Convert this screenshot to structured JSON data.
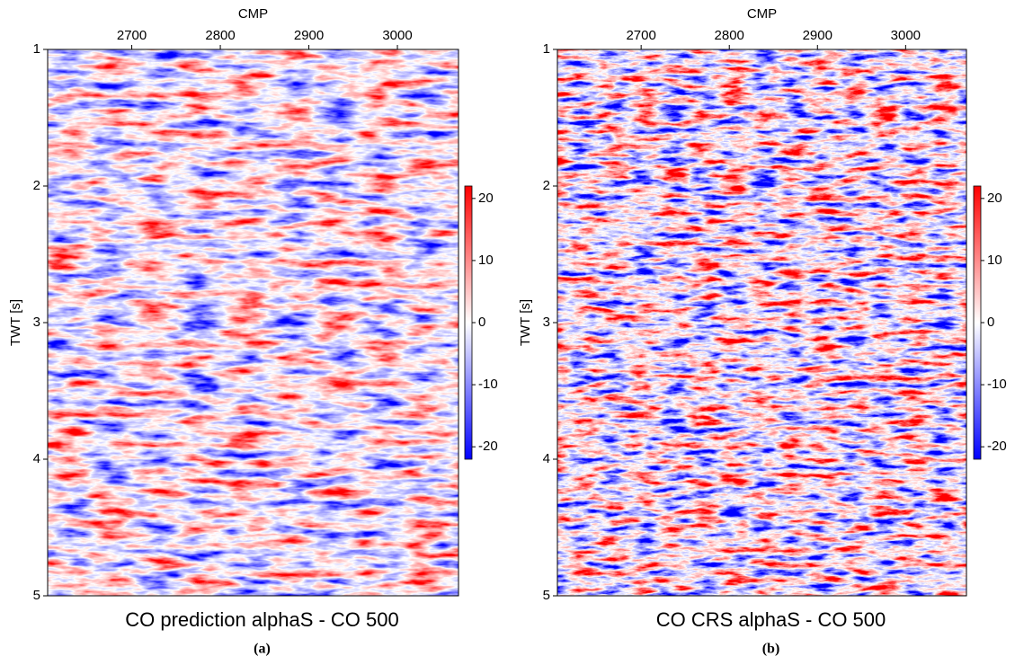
{
  "chart_data": [
    {
      "type": "heatmap",
      "title": "CO prediction alphaS - CO 500",
      "caption": "(a)",
      "xlabel": "CMP",
      "ylabel": "TWT [s]",
      "xlim": [
        2605,
        3069
      ],
      "xticks": [
        2700,
        2800,
        2900,
        3000
      ],
      "ylim": [
        1,
        5
      ],
      "yticks": [
        1,
        2,
        3,
        4,
        5
      ],
      "colorbar": {
        "lim": [
          -22,
          22
        ],
        "ticks": [
          20,
          10,
          0,
          -10,
          -20
        ],
        "colors": [
          "#0000ff",
          "#ffffff",
          "#ff0000"
        ]
      }
    },
    {
      "type": "heatmap",
      "title": "CO CRS alphaS - CO 500",
      "caption": "(b)",
      "xlabel": "CMP",
      "ylabel": "TWT [s]",
      "xlim": [
        2605,
        3069
      ],
      "xticks": [
        2700,
        2800,
        2900,
        3000
      ],
      "ylim": [
        1,
        5
      ],
      "yticks": [
        1,
        2,
        3,
        4,
        5
      ],
      "colorbar": {
        "lim": [
          -22,
          22
        ],
        "ticks": [
          20,
          10,
          0,
          -10,
          -20
        ],
        "colors": [
          "#0000ff",
          "#ffffff",
          "#ff0000"
        ]
      }
    }
  ]
}
